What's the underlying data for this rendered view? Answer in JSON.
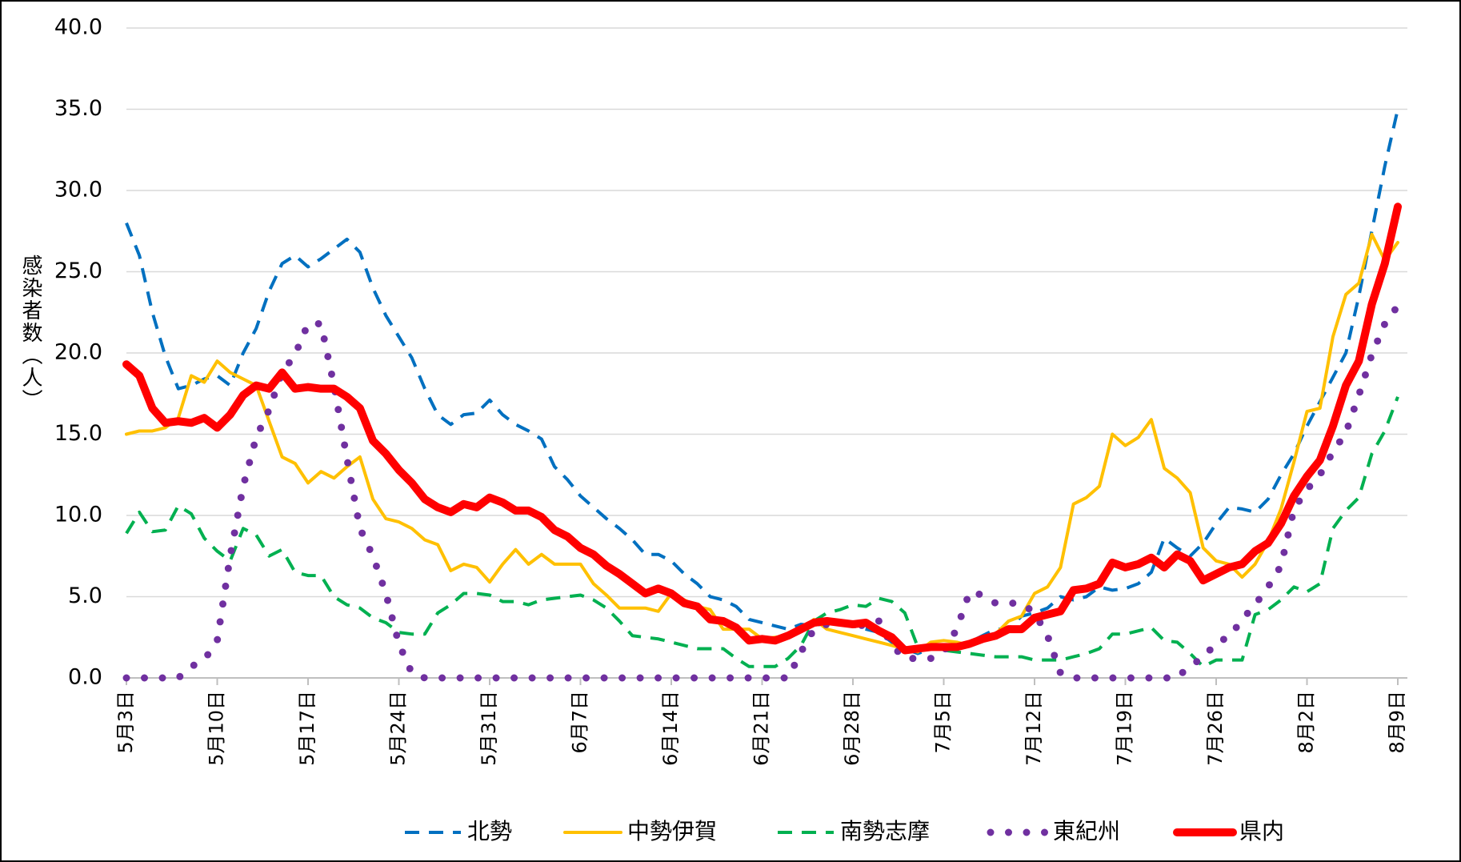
{
  "chart_data": {
    "type": "line",
    "y_label": "感染者数（人）",
    "categories": [
      "5月3日",
      null,
      null,
      null,
      null,
      null,
      null,
      "5月10日",
      null,
      null,
      null,
      null,
      null,
      null,
      "5月17日",
      null,
      null,
      null,
      null,
      null,
      null,
      "5月24日",
      null,
      null,
      null,
      null,
      null,
      null,
      "5月31日",
      null,
      null,
      null,
      null,
      null,
      null,
      "6月7日",
      null,
      null,
      null,
      null,
      null,
      null,
      "6月14日",
      null,
      null,
      null,
      null,
      null,
      null,
      "6月21日",
      null,
      null,
      null,
      null,
      null,
      null,
      "6月28日",
      null,
      null,
      null,
      null,
      null,
      null,
      "7月5日",
      null,
      null,
      null,
      null,
      null,
      null,
      "7月12日",
      null,
      null,
      null,
      null,
      null,
      null,
      "7月19日",
      null,
      null,
      null,
      null,
      null,
      null,
      "7月26日",
      null,
      null,
      null,
      null,
      null,
      null,
      "8月2日",
      null,
      null,
      null,
      null,
      null,
      null,
      "8月9日"
    ],
    "ylim": [
      0,
      40
    ],
    "yticks": [
      {
        "value": 0,
        "label": "0.0"
      },
      {
        "value": 5,
        "label": "5.0"
      },
      {
        "value": 10,
        "label": "10.0"
      },
      {
        "value": 15,
        "label": "15.0"
      },
      {
        "value": 20,
        "label": "20.0"
      },
      {
        "value": 25,
        "label": "25.0"
      },
      {
        "value": 30,
        "label": "30.0"
      },
      {
        "value": 35,
        "label": "35.0"
      },
      {
        "value": 40,
        "label": "40.0"
      }
    ],
    "grid": true,
    "legend": "bottom",
    "series": [
      {
        "name": "北勢",
        "color": "#0070c0",
        "style": "dashed",
        "linewidth": 4,
        "values": [
          28.0,
          26.0,
          22.5,
          19.8,
          17.8,
          18.0,
          18.4,
          18.6,
          18.0,
          20.0,
          21.5,
          23.8,
          25.5,
          26.0,
          25.3,
          25.8,
          26.4,
          27.0,
          26.2,
          24.0,
          22.3,
          21.0,
          19.7,
          17.8,
          16.2,
          15.6,
          16.2,
          16.3,
          17.1,
          16.2,
          15.6,
          15.2,
          14.7,
          13.0,
          12.2,
          11.2,
          10.5,
          9.8,
          9.2,
          8.5,
          7.6,
          7.6,
          7.2,
          6.4,
          5.8,
          5.0,
          4.8,
          4.4,
          3.6,
          3.4,
          3.2,
          3.0,
          3.3,
          3.2,
          3.4,
          3.3,
          3.2,
          3.0,
          2.8,
          2.2,
          1.8,
          1.5,
          1.8,
          2.0,
          2.0,
          2.2,
          2.6,
          3.0,
          3.0,
          3.8,
          4.0,
          4.3,
          5.0,
          4.8,
          5.0,
          5.6,
          5.4,
          5.5,
          5.8,
          6.5,
          8.6,
          8.0,
          7.5,
          8.3,
          9.5,
          10.5,
          10.4,
          10.2,
          11.0,
          12.5,
          13.8,
          15.5,
          17.0,
          18.5,
          20.0,
          23.5,
          27.5,
          31.5,
          35.0
        ]
      },
      {
        "name": "中勢伊賀",
        "color": "#ffc000",
        "style": "solid",
        "linewidth": 4,
        "values": [
          15.0,
          15.2,
          15.2,
          15.4,
          16.0,
          18.6,
          18.2,
          19.5,
          18.8,
          18.4,
          18.0,
          15.8,
          13.6,
          13.2,
          12.0,
          12.7,
          12.3,
          13.0,
          13.6,
          11.0,
          9.8,
          9.6,
          9.2,
          8.5,
          8.2,
          6.6,
          7.0,
          6.8,
          5.9,
          7.0,
          7.9,
          7.0,
          7.6,
          7.0,
          7.0,
          7.0,
          5.8,
          5.1,
          4.3,
          4.3,
          4.3,
          4.1,
          5.2,
          4.8,
          4.4,
          4.2,
          3.0,
          3.0,
          3.0,
          2.4,
          2.5,
          2.6,
          3.0,
          3.6,
          3.0,
          2.8,
          2.6,
          2.4,
          2.2,
          2.0,
          1.8,
          1.6,
          2.2,
          2.3,
          2.2,
          2.0,
          2.4,
          2.7,
          3.5,
          3.8,
          5.2,
          5.6,
          6.8,
          10.7,
          11.1,
          11.8,
          15.0,
          14.3,
          14.8,
          15.9,
          12.9,
          12.3,
          11.4,
          8.0,
          7.2,
          7.0,
          6.2,
          7.0,
          8.4,
          10.4,
          13.3,
          16.4,
          16.6,
          21.0,
          23.6,
          24.3,
          27.3,
          25.7,
          26.8
        ]
      },
      {
        "name": "南勢志摩",
        "color": "#00b050",
        "style": "dashed",
        "linewidth": 4,
        "values": [
          8.9,
          10.2,
          9.0,
          9.1,
          10.6,
          10.1,
          8.6,
          7.8,
          7.2,
          9.2,
          8.8,
          7.5,
          7.9,
          6.5,
          6.3,
          6.3,
          5.0,
          4.5,
          4.3,
          3.7,
          3.4,
          2.8,
          2.7,
          2.7,
          4.0,
          4.5,
          5.2,
          5.2,
          5.1,
          4.7,
          4.7,
          4.5,
          4.8,
          4.9,
          5.0,
          5.1,
          4.8,
          4.3,
          3.5,
          2.6,
          2.5,
          2.4,
          2.2,
          2.0,
          1.8,
          1.8,
          1.8,
          1.2,
          0.7,
          0.7,
          0.7,
          1.2,
          2.0,
          3.5,
          4.0,
          4.2,
          4.5,
          4.4,
          4.9,
          4.7,
          4.0,
          1.9,
          1.9,
          1.7,
          1.6,
          1.5,
          1.4,
          1.3,
          1.3,
          1.3,
          1.1,
          1.1,
          1.1,
          1.3,
          1.5,
          1.8,
          2.7,
          2.7,
          2.9,
          3.1,
          2.3,
          2.2,
          1.5,
          0.7,
          1.1,
          1.1,
          1.1,
          3.9,
          4.2,
          4.8,
          5.6,
          5.3,
          5.8,
          9.2,
          10.3,
          11.1,
          13.8,
          15.2,
          17.3
        ]
      },
      {
        "name": "東紀州",
        "color": "#7030a0",
        "style": "dotted",
        "linewidth": 9,
        "values": [
          0,
          0,
          0,
          0,
          0,
          0.7,
          1.1,
          2.3,
          7.5,
          11.8,
          14.8,
          16.5,
          18.8,
          19.9,
          21.8,
          21.8,
          18.0,
          13.5,
          9.2,
          7.5,
          5.2,
          2.1,
          0.3,
          0,
          0,
          0,
          0,
          0,
          0,
          0,
          0,
          0,
          0,
          0,
          0,
          0,
          0,
          0,
          0,
          0,
          0,
          0,
          0,
          0,
          0,
          0,
          0,
          0,
          0,
          0,
          0,
          0,
          1.6,
          3.0,
          3.3,
          3.4,
          3.3,
          3.2,
          3.5,
          2.0,
          1.2,
          1.2,
          1.2,
          1.6,
          3.0,
          5.3,
          5.1,
          4.6,
          4.6,
          4.6,
          4.0,
          2.6,
          0.3,
          0,
          0,
          0,
          0,
          0,
          0,
          0,
          0,
          0,
          0.8,
          1.2,
          2.2,
          2.5,
          3.6,
          4.5,
          5.6,
          6.9,
          10.4,
          11.6,
          12.5,
          13.9,
          15.1,
          17.4,
          19.9,
          21.8,
          22.9
        ]
      },
      {
        "name": "県内",
        "color": "#ff0000",
        "style": "solid",
        "linewidth": 10,
        "values": [
          19.3,
          18.6,
          16.6,
          15.7,
          15.8,
          15.7,
          16.0,
          15.4,
          16.2,
          17.4,
          18.0,
          17.8,
          18.8,
          17.8,
          17.9,
          17.8,
          17.8,
          17.3,
          16.6,
          14.6,
          13.8,
          12.8,
          12.0,
          11.0,
          10.5,
          10.2,
          10.7,
          10.5,
          11.1,
          10.8,
          10.3,
          10.3,
          9.9,
          9.1,
          8.7,
          8.0,
          7.6,
          6.9,
          6.4,
          5.8,
          5.2,
          5.5,
          5.2,
          4.6,
          4.4,
          3.6,
          3.5,
          3.1,
          2.3,
          2.4,
          2.3,
          2.6,
          3.0,
          3.4,
          3.5,
          3.4,
          3.3,
          3.4,
          2.9,
          2.5,
          1.7,
          1.8,
          1.9,
          1.9,
          1.9,
          2.1,
          2.4,
          2.6,
          3.0,
          3.0,
          3.7,
          3.9,
          4.1,
          5.4,
          5.5,
          5.8,
          7.1,
          6.8,
          7.0,
          7.4,
          6.8,
          7.6,
          7.2,
          6.0,
          6.4,
          6.8,
          7.0,
          7.8,
          8.3,
          9.5,
          11.2,
          12.4,
          13.4,
          15.5,
          18.0,
          19.5,
          23.0,
          25.5,
          29.0
        ]
      }
    ]
  }
}
